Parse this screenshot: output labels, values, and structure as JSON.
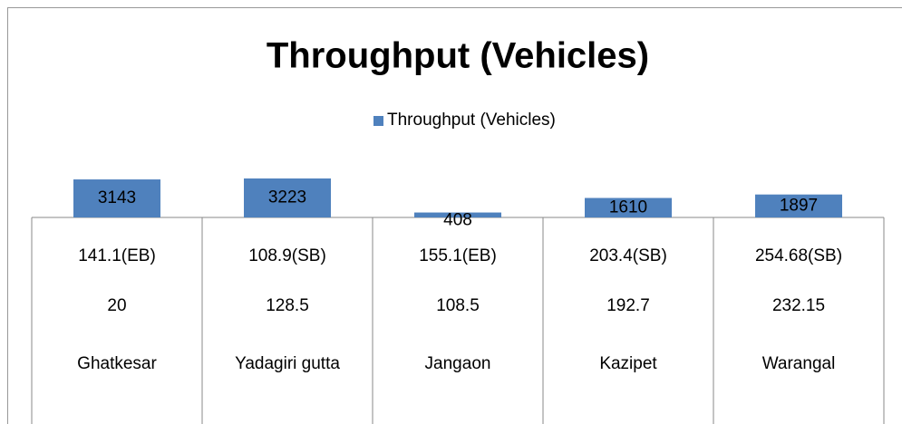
{
  "chart_data": {
    "type": "bar",
    "title": "Throughput (Vehicles)",
    "categories": [
      "Ghatkesar",
      "Yadagiri gutta",
      "Jangaon",
      "Kazipet",
      "Warangal"
    ],
    "category_rows": [
      [
        "141.1(EB)",
        "108.9(SB)",
        "155.1(EB)",
        "203.4(SB)",
        "254.68(SB)"
      ],
      [
        20,
        128.5,
        108.5,
        192.7,
        232.15
      ]
    ],
    "series": [
      {
        "name": "Throughput (Vehicles)",
        "color": "#4f81bd",
        "values": [
          3143,
          3223,
          408,
          1610,
          1897
        ]
      }
    ]
  }
}
